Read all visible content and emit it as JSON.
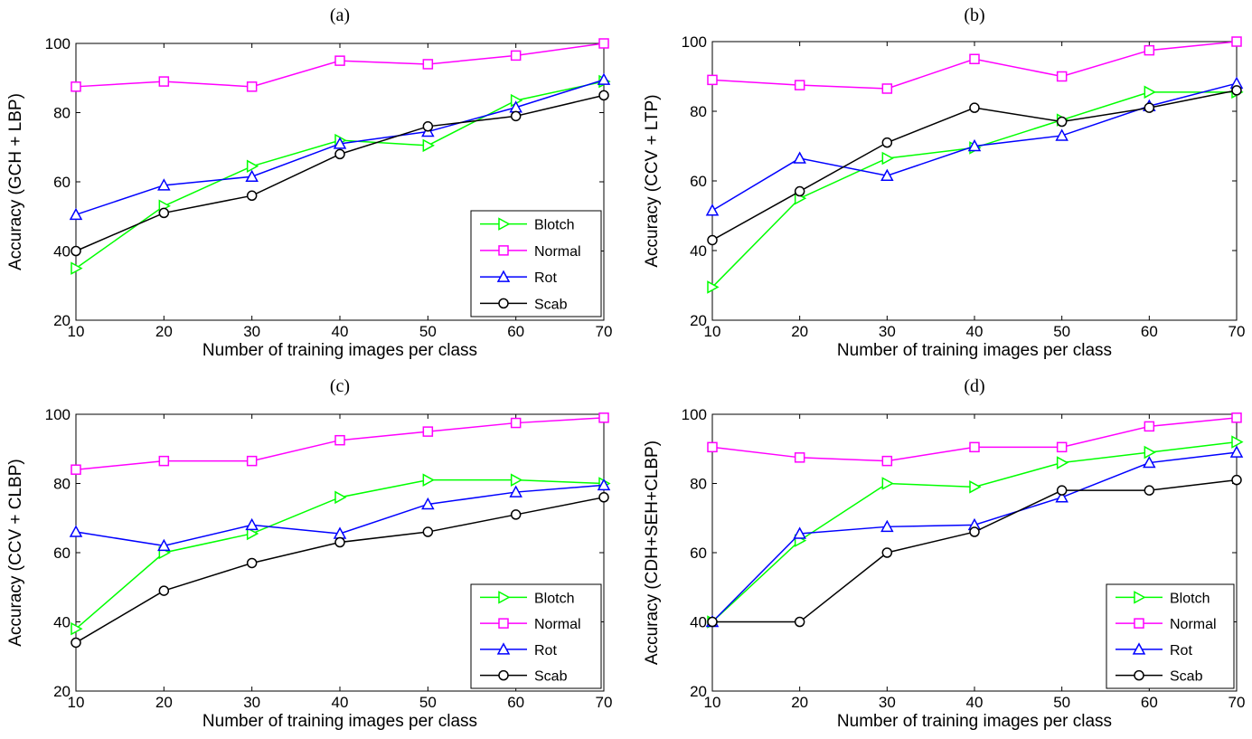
{
  "chart_data": [
    {
      "type": "line",
      "title": "(a)",
      "xlabel": "Number of training images per class",
      "ylabel": "Accuracy (GCH + LBP)",
      "x": [
        10,
        20,
        30,
        40,
        50,
        60,
        70
      ],
      "xlim": [
        10,
        70
      ],
      "ylim": [
        20,
        100
      ],
      "xticks": [
        10,
        20,
        30,
        40,
        50,
        60,
        70
      ],
      "yticks": [
        20,
        40,
        60,
        80,
        100
      ],
      "grid": false,
      "legend_position": "bottom-right",
      "series": [
        {
          "name": "Blotch",
          "color": "#00ff00",
          "marker": "triangle-right",
          "values": [
            35,
            53,
            64.5,
            72,
            70.5,
            83.5,
            89
          ]
        },
        {
          "name": "Normal",
          "color": "#ff00ff",
          "marker": "square",
          "values": [
            87.5,
            89,
            87.5,
            95,
            94,
            96.5,
            100
          ]
        },
        {
          "name": "Rot",
          "color": "#0000ff",
          "marker": "triangle-up",
          "values": [
            50.5,
            59,
            61.5,
            71,
            74.5,
            81.5,
            89.5
          ]
        },
        {
          "name": "Scab",
          "color": "#000000",
          "marker": "circle",
          "values": [
            40,
            51,
            56,
            68,
            76,
            79,
            85
          ]
        }
      ]
    },
    {
      "type": "line",
      "title": "(b)",
      "xlabel": "Number of training images per class",
      "ylabel": "Accuracy (CCV + LTP)",
      "x": [
        10,
        20,
        30,
        40,
        50,
        60,
        70
      ],
      "xlim": [
        10,
        70
      ],
      "ylim": [
        20,
        100
      ],
      "xticks": [
        10,
        20,
        30,
        40,
        50,
        60,
        70
      ],
      "yticks": [
        20,
        40,
        60,
        80,
        100
      ],
      "grid": false,
      "legend_position": "none",
      "series": [
        {
          "name": "Blotch",
          "color": "#00ff00",
          "marker": "triangle-right",
          "values": [
            29.5,
            55,
            66.5,
            69.5,
            77.5,
            85.5,
            85.5
          ]
        },
        {
          "name": "Normal",
          "color": "#ff00ff",
          "marker": "square",
          "values": [
            89,
            87.5,
            86.5,
            95,
            90,
            97.5,
            100
          ]
        },
        {
          "name": "Rot",
          "color": "#0000ff",
          "marker": "triangle-up",
          "values": [
            51.5,
            66.5,
            61.5,
            70,
            73,
            81.5,
            88
          ]
        },
        {
          "name": "Scab",
          "color": "#000000",
          "marker": "circle",
          "values": [
            43,
            57,
            71,
            81,
            77,
            81,
            86
          ]
        }
      ]
    },
    {
      "type": "line",
      "title": "(c)",
      "xlabel": "Number of training images per class",
      "ylabel": "Accuracy (CCV + CLBP)",
      "x": [
        10,
        20,
        30,
        40,
        50,
        60,
        70
      ],
      "xlim": [
        10,
        70
      ],
      "ylim": [
        20,
        100
      ],
      "xticks": [
        10,
        20,
        30,
        40,
        50,
        60,
        70
      ],
      "yticks": [
        20,
        40,
        60,
        80,
        100
      ],
      "grid": false,
      "legend_position": "bottom-right",
      "series": [
        {
          "name": "Blotch",
          "color": "#00ff00",
          "marker": "triangle-right",
          "values": [
            38,
            60,
            65.5,
            76,
            81,
            81,
            80
          ]
        },
        {
          "name": "Normal",
          "color": "#ff00ff",
          "marker": "square",
          "values": [
            84,
            86.5,
            86.5,
            92.5,
            95,
            97.5,
            99
          ]
        },
        {
          "name": "Rot",
          "color": "#0000ff",
          "marker": "triangle-up",
          "values": [
            66,
            62,
            68,
            65.5,
            74,
            77.5,
            79.5
          ]
        },
        {
          "name": "Scab",
          "color": "#000000",
          "marker": "circle",
          "values": [
            34,
            49,
            57,
            63,
            66,
            71,
            76
          ]
        }
      ]
    },
    {
      "type": "line",
      "title": "(d)",
      "xlabel": "Number of training images per class",
      "ylabel": "Accuracy (CDH+SEH+CLBP)",
      "x": [
        10,
        20,
        30,
        40,
        50,
        60,
        70
      ],
      "xlim": [
        10,
        70
      ],
      "ylim": [
        20,
        100
      ],
      "xticks": [
        10,
        20,
        30,
        40,
        50,
        60,
        70
      ],
      "yticks": [
        20,
        40,
        60,
        80,
        100
      ],
      "grid": false,
      "legend_position": "bottom-right",
      "series": [
        {
          "name": "Blotch",
          "color": "#00ff00",
          "marker": "triangle-right",
          "values": [
            40,
            63.5,
            80,
            79,
            86,
            89,
            92
          ]
        },
        {
          "name": "Normal",
          "color": "#ff00ff",
          "marker": "square",
          "values": [
            90.5,
            87.5,
            86.5,
            90.5,
            90.5,
            96.5,
            99
          ]
        },
        {
          "name": "Rot",
          "color": "#0000ff",
          "marker": "triangle-up",
          "values": [
            40,
            65.5,
            67.5,
            68,
            76,
            86,
            89
          ]
        },
        {
          "name": "Scab",
          "color": "#000000",
          "marker": "circle",
          "values": [
            40,
            40,
            60,
            66,
            78,
            78,
            81
          ]
        }
      ]
    }
  ]
}
